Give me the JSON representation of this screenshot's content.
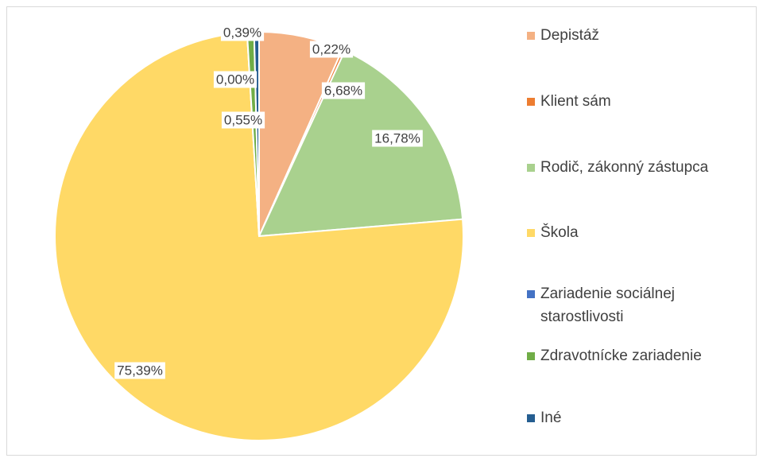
{
  "chart_data": {
    "type": "pie",
    "categories": [
      "Depistáž",
      "Klient sám",
      "Rodič, zákonný zástupca",
      "Škola",
      "Zariadenie sociálnej starostlivosti",
      "Zdravotnícke zariadenie",
      "Iné"
    ],
    "values": [
      6.68,
      0.22,
      16.78,
      75.39,
      0.0,
      0.55,
      0.39
    ],
    "value_labels": [
      "6,68%",
      "0,22%",
      "16,78%",
      "75,39%",
      "0,00%",
      "0,55%",
      "0,39%"
    ],
    "colors": [
      "#f4b183",
      "#ed7d31",
      "#a9d18e",
      "#ffd966",
      "#4472c4",
      "#70ad47",
      "#255e91"
    ],
    "legend": "right"
  }
}
